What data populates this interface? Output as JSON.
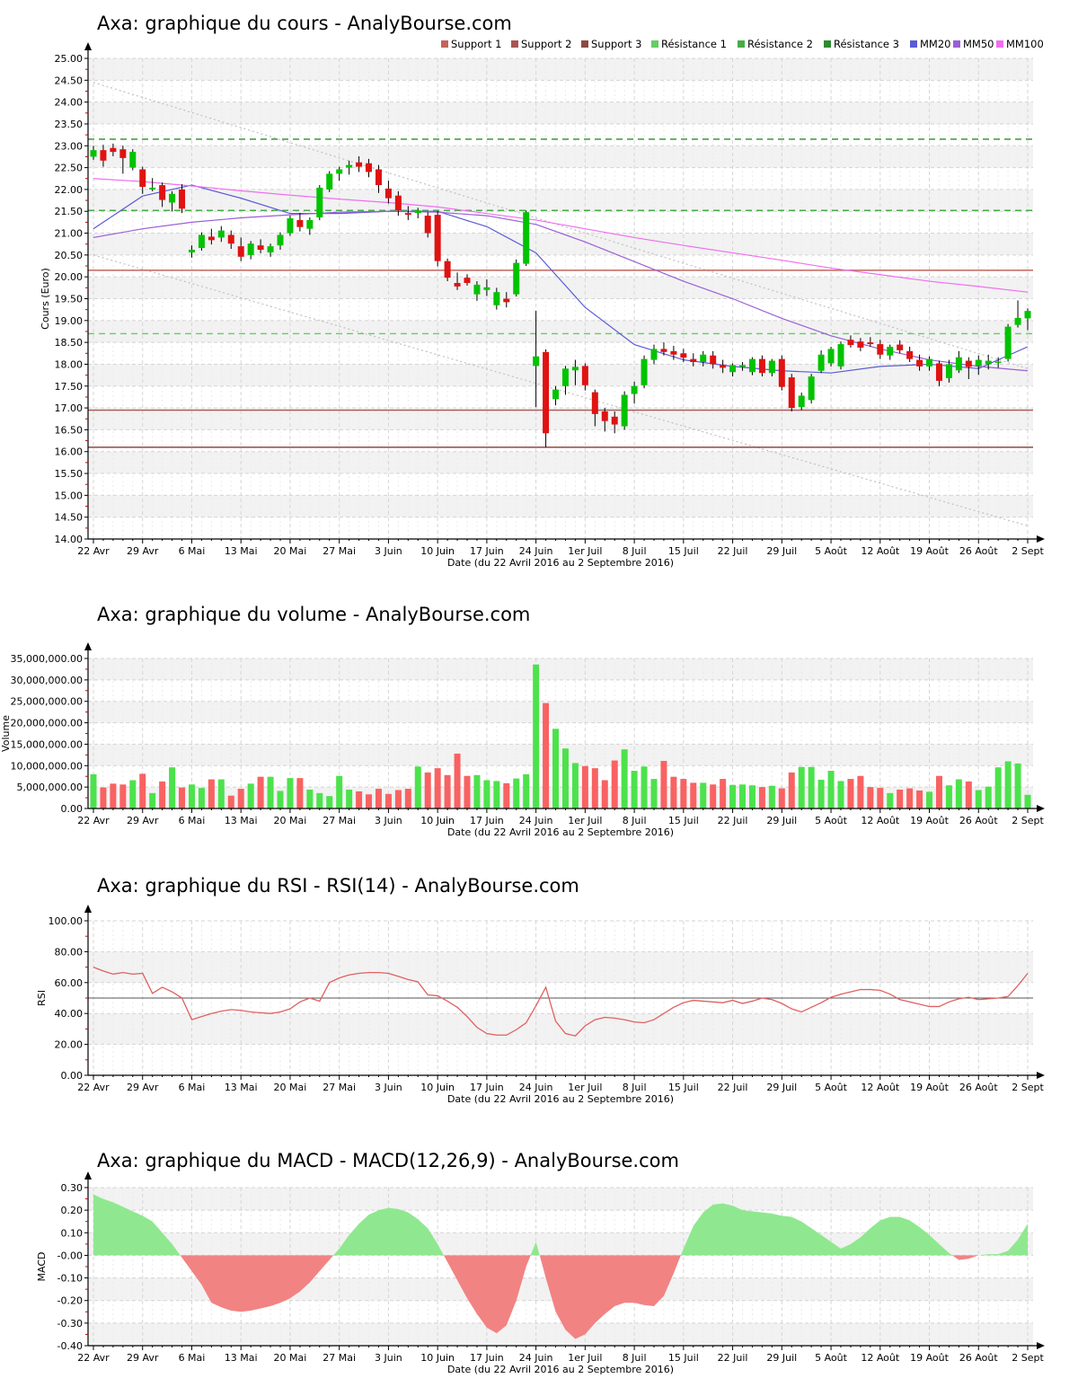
{
  "page": {
    "background": "#ffffff",
    "date_axis_label": "Date (du 22 Avril 2016 au 2 Septembre 2016)",
    "x_tick_labels": [
      "22 Avr",
      "29 Avr",
      "6 Mai",
      "13 Mai",
      "20 Mai",
      "27 Mai",
      "3 Juin",
      "10 Juin",
      "17 Juin",
      "24 Juin",
      "1er Juil",
      "8 Juil",
      "15 Juil",
      "22 Juil",
      "29 Juil",
      "5 Août",
      "12 Août",
      "19 Août",
      "26 Août",
      "2 Sept"
    ],
    "x_ticks_per_label": 5
  },
  "colors": {
    "candle_up": "#00c300",
    "candle_down": "#e01212",
    "wick": "#000000",
    "volume_up": "#4ce24c",
    "volume_down": "#f96262",
    "rsi_line": "#e06060",
    "rsi_midline": "#555555",
    "macd_positive": "#8fe88f",
    "macd_negative": "#f28383",
    "stripe": "#f2f2f2",
    "grid_h": "#d4d4d4",
    "grid_v_week": "#d6d6d6",
    "grid_v_day": "#ebebeb",
    "axis": "#000000",
    "minor_tick": "#cc0000",
    "channel": "#c0c0c0"
  },
  "chart_data": [
    {
      "type": "candlestick",
      "title": "Axa: graphique du cours - AnalyBourse.com",
      "ylabel": "Cours (Euro)",
      "ylim": [
        14.0,
        25.0
      ],
      "ystep": 0.5,
      "legend": [
        {
          "label": "Support 1",
          "color": "#c4635c"
        },
        {
          "label": "Support 2",
          "color": "#a85550"
        },
        {
          "label": "Support 3",
          "color": "#8a4a42"
        },
        {
          "label": "Résistance 1",
          "color": "#63ce63"
        },
        {
          "label": "Résistance 2",
          "color": "#47ad47"
        },
        {
          "label": "Résistance 3",
          "color": "#2e8b2e"
        },
        {
          "label": "MM20",
          "color": "#5b5bd6"
        },
        {
          "label": "MM50",
          "color": "#9a5fd6"
        },
        {
          "label": "MM100",
          "color": "#ef6fef"
        }
      ],
      "supports": [
        {
          "label": "Support 1",
          "value": 20.15,
          "color": "#c4635c"
        },
        {
          "label": "Support 2",
          "value": 16.95,
          "color": "#a85550"
        },
        {
          "label": "Support 3",
          "value": 16.1,
          "color": "#8a4a42"
        }
      ],
      "resistances": [
        {
          "label": "Résistance 1",
          "value": 18.7,
          "color": "#63ce63"
        },
        {
          "label": "Résistance 2",
          "value": 21.52,
          "color": "#47ad47"
        },
        {
          "label": "Résistance 3",
          "value": 23.15,
          "color": "#2e8b2e"
        }
      ],
      "channel": {
        "upper": {
          "start": 24.45,
          "end": 17.9
        },
        "lower": {
          "start": 20.5,
          "end": 14.3
        }
      },
      "moving_averages": [
        {
          "label": "MM20",
          "color": "#5b5bd6",
          "tick_spacing": 5,
          "values": [
            21.1,
            21.85,
            22.1,
            21.8,
            21.45,
            21.45,
            21.5,
            21.5,
            21.15,
            20.55,
            19.3,
            18.45,
            18.1,
            17.95,
            17.85,
            17.8,
            17.95,
            18.0,
            17.9,
            18.4
          ]
        },
        {
          "label": "MM50",
          "color": "#9a5fd6",
          "tick_spacing": 5,
          "values": [
            20.9,
            21.1,
            21.25,
            21.35,
            21.42,
            21.48,
            21.5,
            21.48,
            21.4,
            21.2,
            20.8,
            20.35,
            19.9,
            19.5,
            19.05,
            18.65,
            18.35,
            18.1,
            17.95,
            17.85
          ]
        },
        {
          "label": "MM100",
          "color": "#ef6fef",
          "tick_spacing": 5,
          "values": [
            22.25,
            22.18,
            22.08,
            21.97,
            21.87,
            21.78,
            21.7,
            21.6,
            21.45,
            21.3,
            21.1,
            20.9,
            20.72,
            20.55,
            20.38,
            20.2,
            20.05,
            19.9,
            19.78,
            19.65
          ]
        }
      ],
      "candles_ohlc": [
        [
          22.75,
          23.0,
          22.68,
          22.9
        ],
        [
          22.9,
          23.02,
          22.52,
          22.66
        ],
        [
          22.95,
          23.05,
          22.76,
          22.86
        ],
        [
          22.92,
          23.0,
          22.36,
          22.72
        ],
        [
          22.5,
          22.92,
          22.44,
          22.86
        ],
        [
          22.46,
          22.52,
          21.9,
          22.06
        ],
        [
          22.0,
          22.26,
          21.96,
          22.04
        ],
        [
          22.1,
          22.16,
          21.6,
          21.76
        ],
        [
          21.7,
          21.96,
          21.5,
          21.9
        ],
        [
          22.0,
          22.12,
          21.46,
          21.56
        ],
        [
          20.56,
          20.72,
          20.44,
          20.62
        ],
        [
          20.66,
          21.02,
          20.6,
          20.96
        ],
        [
          20.92,
          21.1,
          20.74,
          20.84
        ],
        [
          20.9,
          21.16,
          20.8,
          21.06
        ],
        [
          20.96,
          21.06,
          20.64,
          20.76
        ],
        [
          20.7,
          20.9,
          20.36,
          20.46
        ],
        [
          20.5,
          20.82,
          20.4,
          20.76
        ],
        [
          20.72,
          20.86,
          20.54,
          20.62
        ],
        [
          20.56,
          20.76,
          20.46,
          20.7
        ],
        [
          20.72,
          21.02,
          20.62,
          20.96
        ],
        [
          21.0,
          21.4,
          20.94,
          21.34
        ],
        [
          21.3,
          21.46,
          21.04,
          21.14
        ],
        [
          21.1,
          21.36,
          20.96,
          21.3
        ],
        [
          21.36,
          22.1,
          21.3,
          22.04
        ],
        [
          22.0,
          22.42,
          21.94,
          22.36
        ],
        [
          22.36,
          22.52,
          22.2,
          22.46
        ],
        [
          22.5,
          22.66,
          22.34,
          22.56
        ],
        [
          22.62,
          22.76,
          22.4,
          22.52
        ],
        [
          22.6,
          22.7,
          22.28,
          22.4
        ],
        [
          22.46,
          22.56,
          21.92,
          22.1
        ],
        [
          22.02,
          22.2,
          21.68,
          21.8
        ],
        [
          21.86,
          21.96,
          21.4,
          21.52
        ],
        [
          21.46,
          21.62,
          21.3,
          21.42
        ],
        [
          21.46,
          21.58,
          21.34,
          21.52
        ],
        [
          21.4,
          21.48,
          20.9,
          21.0
        ],
        [
          21.42,
          21.5,
          20.24,
          20.36
        ],
        [
          20.36,
          20.42,
          19.9,
          19.98
        ],
        [
          19.86,
          20.1,
          19.7,
          19.78
        ],
        [
          19.98,
          20.06,
          19.8,
          19.86
        ],
        [
          19.6,
          19.9,
          19.45,
          19.82
        ],
        [
          19.7,
          19.94,
          19.56,
          19.76
        ],
        [
          19.35,
          19.75,
          19.25,
          19.65
        ],
        [
          19.5,
          19.65,
          19.3,
          19.42
        ],
        [
          19.6,
          20.4,
          19.55,
          20.32
        ],
        [
          20.3,
          21.52,
          20.25,
          21.48
        ],
        [
          17.96,
          19.22,
          17.02,
          18.18
        ],
        [
          18.28,
          18.34,
          16.1,
          16.42
        ],
        [
          17.2,
          17.5,
          17.06,
          17.42
        ],
        [
          17.5,
          17.96,
          17.3,
          17.9
        ],
        [
          17.86,
          18.1,
          17.52,
          17.94
        ],
        [
          17.96,
          18.02,
          17.4,
          17.52
        ],
        [
          17.36,
          17.42,
          16.58,
          16.86
        ],
        [
          16.92,
          17.0,
          16.46,
          16.7
        ],
        [
          16.8,
          16.92,
          16.42,
          16.62
        ],
        [
          16.58,
          17.38,
          16.5,
          17.3
        ],
        [
          17.32,
          17.6,
          17.1,
          17.5
        ],
        [
          17.52,
          18.2,
          17.45,
          18.12
        ],
        [
          18.1,
          18.45,
          18.0,
          18.35
        ],
        [
          18.35,
          18.5,
          18.2,
          18.28
        ],
        [
          18.3,
          18.42,
          18.1,
          18.22
        ],
        [
          18.25,
          18.35,
          18.05,
          18.15
        ],
        [
          18.12,
          18.25,
          17.95,
          18.05
        ],
        [
          18.05,
          18.3,
          17.95,
          18.22
        ],
        [
          18.2,
          18.3,
          17.9,
          18.0
        ],
        [
          17.98,
          18.1,
          17.8,
          17.92
        ],
        [
          17.82,
          18.02,
          17.72,
          17.98
        ],
        [
          17.94,
          18.05,
          17.85,
          17.98
        ],
        [
          17.82,
          18.16,
          17.75,
          18.12
        ],
        [
          18.12,
          18.2,
          17.72,
          17.8
        ],
        [
          17.8,
          18.12,
          17.72,
          18.08
        ],
        [
          18.12,
          18.2,
          17.4,
          17.48
        ],
        [
          17.7,
          17.78,
          16.92,
          17.0
        ],
        [
          17.02,
          17.35,
          16.95,
          17.28
        ],
        [
          17.18,
          17.78,
          17.1,
          17.72
        ],
        [
          17.85,
          18.32,
          17.8,
          18.22
        ],
        [
          18.02,
          18.4,
          17.95,
          18.35
        ],
        [
          17.95,
          18.52,
          17.88,
          18.46
        ],
        [
          18.56,
          18.66,
          18.38,
          18.44
        ],
        [
          18.52,
          18.6,
          18.3,
          18.38
        ],
        [
          18.5,
          18.62,
          18.4,
          18.46
        ],
        [
          18.46,
          18.56,
          18.12,
          18.22
        ],
        [
          18.2,
          18.45,
          18.1,
          18.4
        ],
        [
          18.45,
          18.55,
          18.25,
          18.32
        ],
        [
          18.3,
          18.4,
          18.05,
          18.12
        ],
        [
          18.1,
          18.22,
          17.85,
          17.95
        ],
        [
          17.95,
          18.18,
          17.85,
          18.12
        ],
        [
          18.02,
          18.08,
          17.5,
          17.62
        ],
        [
          17.68,
          18.1,
          17.58,
          18.0
        ],
        [
          17.86,
          18.3,
          17.8,
          18.16
        ],
        [
          18.08,
          18.16,
          17.66,
          17.94
        ],
        [
          17.96,
          18.2,
          17.76,
          18.1
        ],
        [
          18.0,
          18.22,
          17.88,
          18.08
        ],
        [
          18.04,
          18.16,
          17.92,
          18.06
        ],
        [
          18.12,
          18.92,
          18.06,
          18.86
        ],
        [
          18.9,
          19.46,
          18.84,
          19.06
        ],
        [
          19.05,
          19.28,
          18.78,
          19.22
        ]
      ]
    },
    {
      "type": "bar",
      "title": "Axa: graphique du volume - AnalyBourse.com",
      "ylabel": "Volume",
      "ylim": [
        0,
        35000000
      ],
      "ystep": 5000000,
      "values": [
        8000000.0,
        4900000.0,
        5800000.0,
        5600000.0,
        6600000.0,
        8100000.0,
        3600000.0,
        6300000.0,
        9600000.0,
        4900000.0,
        5600000.0,
        4800000.0,
        6800000.0,
        6800000.0,
        3000000.0,
        4600000.0,
        5800000.0,
        7400000.0,
        7400000.0,
        4100000.0,
        7100000.0,
        7100000.0,
        4400000.0,
        3600000.0,
        2900000.0,
        7600000.0,
        4400000.0,
        4000000.0,
        3300000.0,
        4600000.0,
        3400000.0,
        4300000.0,
        4600000.0,
        9800000.0,
        8400000.0,
        9400000.0,
        7800000.0,
        12800000.0,
        7600000.0,
        7800000.0,
        6600000.0,
        6400000.0,
        5900000.0,
        7000000.0,
        8000000.0,
        33600000.0,
        24600000.0,
        18600000.0,
        14000000.0,
        10600000.0,
        9900000.0,
        9400000.0,
        6600000.0,
        11200000.0,
        13800000.0,
        8800000.0,
        9800000.0,
        6900000.0,
        11100000.0,
        7400000.0,
        6900000.0,
        6000000.0,
        6000000.0,
        5600000.0,
        6900000.0,
        5500000.0,
        5600000.0,
        5400000.0,
        5000000.0,
        5300000.0,
        4700000.0,
        8400000.0,
        9700000.0,
        9700000.0,
        6700000.0,
        8800000.0,
        6400000.0,
        6900000.0,
        7600000.0,
        5000000.0,
        4800000.0,
        3600000.0,
        4400000.0,
        4700000.0,
        4200000.0,
        3900000.0,
        7600000.0,
        5400000.0,
        6800000.0,
        6300000.0,
        4300000.0,
        5100000.0,
        9600000.0,
        11000000.0,
        10500000.0,
        3200000.0
      ]
    },
    {
      "type": "line",
      "title": "Axa: graphique du RSI - RSI(14) - AnalyBourse.com",
      "ylabel": "RSI",
      "ylim": [
        0,
        100
      ],
      "ystep": 20,
      "midline": 50,
      "values": [
        70,
        67.5,
        65.5,
        66.5,
        65.5,
        66,
        53,
        57,
        54,
        50,
        36,
        38,
        40,
        41.5,
        42.5,
        42,
        41,
        40.5,
        40,
        41,
        43,
        47.5,
        50,
        48,
        60,
        63,
        65,
        66,
        66.5,
        66.5,
        66,
        64,
        62,
        60.5,
        52,
        51.5,
        48,
        44,
        38,
        31,
        27,
        26,
        26,
        29.5,
        34,
        45,
        57,
        35,
        27,
        25.5,
        32,
        36,
        37.5,
        37,
        36,
        34.5,
        34,
        36,
        40,
        44,
        47,
        48.5,
        48,
        47.5,
        47,
        48.5,
        46.5,
        48,
        50,
        49,
        46.5,
        43,
        41,
        44,
        47,
        50.5,
        52.5,
        54,
        55.5,
        55.5,
        55,
        52.5,
        49,
        47.5,
        46,
        44.5,
        44.5,
        47.5,
        49.5,
        50.5,
        49,
        49.5,
        50,
        51,
        58,
        66
      ]
    },
    {
      "type": "area",
      "title": "Axa: graphique du MACD - MACD(12,26,9) - AnalyBourse.com",
      "ylabel": "MACD",
      "ylim": [
        -0.4,
        0.3
      ],
      "ystep": 0.1,
      "values": [
        0.27,
        0.25,
        0.235,
        0.215,
        0.195,
        0.175,
        0.15,
        0.1,
        0.05,
        -0.01,
        -0.07,
        -0.13,
        -0.21,
        -0.23,
        -0.245,
        -0.25,
        -0.245,
        -0.235,
        -0.225,
        -0.21,
        -0.19,
        -0.16,
        -0.12,
        -0.07,
        -0.02,
        0.03,
        0.09,
        0.14,
        0.18,
        0.2,
        0.21,
        0.205,
        0.19,
        0.16,
        0.12,
        0.05,
        -0.03,
        -0.11,
        -0.19,
        -0.26,
        -0.32,
        -0.345,
        -0.31,
        -0.2,
        -0.05,
        0.06,
        -0.1,
        -0.25,
        -0.33,
        -0.37,
        -0.35,
        -0.3,
        -0.26,
        -0.225,
        -0.21,
        -0.21,
        -0.22,
        -0.225,
        -0.18,
        -0.08,
        0.03,
        0.13,
        0.19,
        0.225,
        0.23,
        0.22,
        0.2,
        0.195,
        0.19,
        0.185,
        0.175,
        0.17,
        0.15,
        0.12,
        0.09,
        0.06,
        0.03,
        0.05,
        0.08,
        0.12,
        0.155,
        0.17,
        0.17,
        0.155,
        0.125,
        0.09,
        0.05,
        0.01,
        -0.02,
        -0.015,
        0.0,
        0.005,
        0.005,
        0.02,
        0.07,
        0.14
      ]
    }
  ]
}
